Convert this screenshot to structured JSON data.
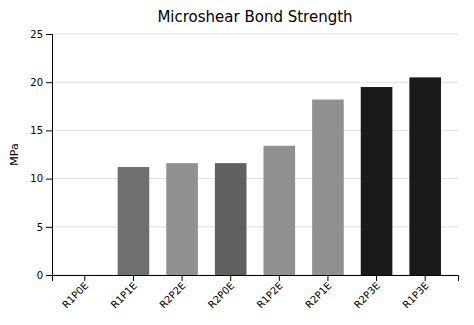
{
  "chart_data": {
    "type": "bar",
    "title": "Microshear Bond Strength",
    "ylabel": "MPa",
    "categories": [
      "R1P0E",
      "R1P1E",
      "R2P2E",
      "R2P0E",
      "R1P2E",
      "R2P1E",
      "R2P3E",
      "R1P3E"
    ],
    "values": [
      0.0,
      11.2,
      11.6,
      11.6,
      13.4,
      18.2,
      19.5,
      20.5
    ],
    "colors": [
      "#909090",
      "#707070",
      "#909090",
      "#606060",
      "#909090",
      "#909090",
      "#1a1a1a",
      "#1a1a1a"
    ],
    "ylim": [
      0,
      25
    ],
    "yticks": [
      0,
      5,
      10,
      15,
      20,
      25
    ],
    "grid": true
  }
}
